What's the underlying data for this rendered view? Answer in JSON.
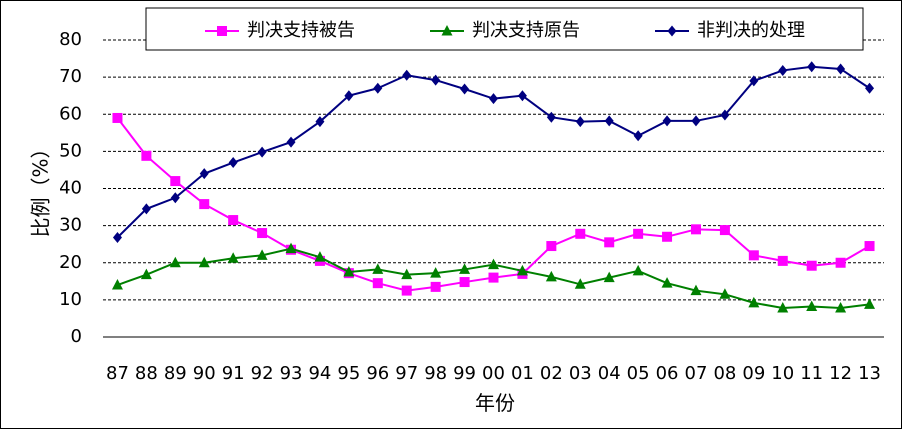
{
  "chart_data": {
    "type": "line",
    "title": "",
    "xlabel": "年份",
    "ylabel": "比例（%）",
    "ylim": [
      0,
      80
    ],
    "yticks": [
      0,
      10,
      20,
      30,
      40,
      50,
      60,
      70,
      80
    ],
    "grid": true,
    "legend_position": "top",
    "categories": [
      "87",
      "88",
      "89",
      "90",
      "91",
      "92",
      "93",
      "94",
      "95",
      "96",
      "97",
      "98",
      "99",
      "00",
      "01",
      "02",
      "03",
      "04",
      "05",
      "06",
      "07",
      "08",
      "09",
      "10",
      "11",
      "12",
      "13"
    ],
    "series": [
      {
        "name": "判决支持被告",
        "color": "#ff00ff",
        "marker": "square",
        "values": [
          59,
          48.8,
          42,
          35.8,
          31.5,
          28,
          23.5,
          20.5,
          17.2,
          14.5,
          12.5,
          13.5,
          14.8,
          16,
          17,
          24.5,
          27.8,
          25.5,
          27.8,
          27,
          29,
          28.8,
          22,
          20.5,
          19.2,
          20,
          24.5
        ]
      },
      {
        "name": "判决支持原告",
        "color": "#008000",
        "marker": "triangle",
        "values": [
          14,
          16.8,
          20,
          20,
          21.2,
          22,
          23.8,
          21.5,
          17.5,
          18.2,
          16.8,
          17.2,
          18.2,
          19.5,
          17.8,
          16.2,
          14.2,
          16,
          17.8,
          14.5,
          12.5,
          11.5,
          9.2,
          7.8,
          8.2,
          7.8,
          8.8
        ]
      },
      {
        "name": "非判决的处理",
        "color": "#000080",
        "marker": "diamond",
        "values": [
          26.8,
          34.5,
          37.5,
          44,
          47,
          49.8,
          52.5,
          58,
          65,
          67,
          70.5,
          69.2,
          66.8,
          64.2,
          65,
          59.2,
          58,
          58.2,
          54.2,
          58.2,
          58.2,
          59.8,
          69,
          71.8,
          72.8,
          72.2,
          67
        ]
      }
    ]
  }
}
